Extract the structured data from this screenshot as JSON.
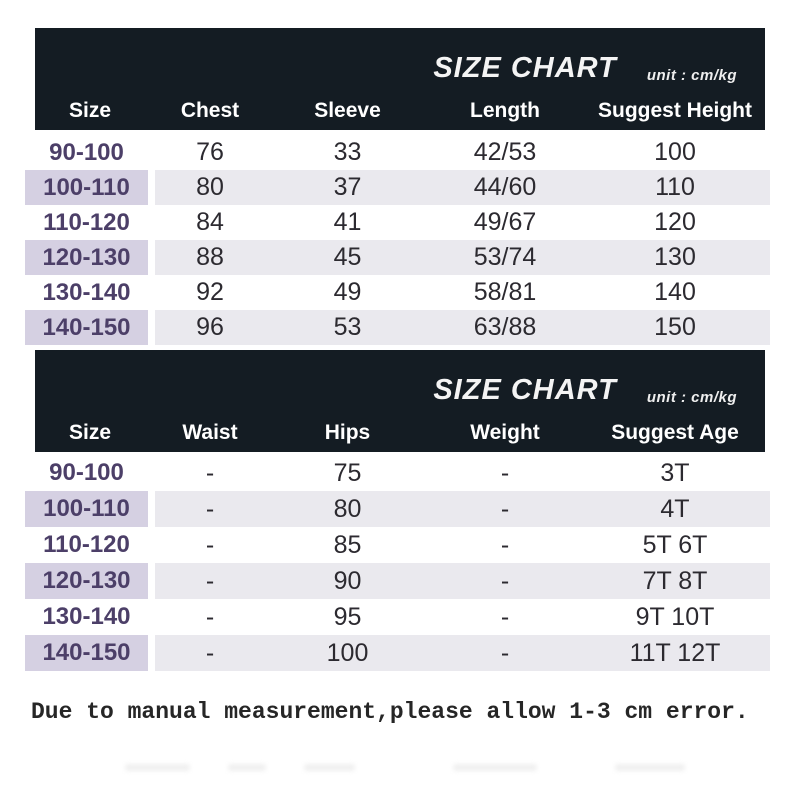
{
  "note": "Due to manual measurement,please allow 1-3 cm error.",
  "colors": {
    "header_bg": "#141c23",
    "header_text": "#ffffff",
    "size_text": "#4c3f68",
    "value_text": "#2c2a30",
    "size_cell_bg": "#d5d0e2",
    "stripe_bg": "#eae9ee"
  },
  "chart_data": [
    {
      "type": "table",
      "title": "SIZE CHART",
      "unit": "unit : cm/kg",
      "columns": [
        "Size",
        "Chest",
        "Sleeve",
        "Length",
        "Suggest Height"
      ],
      "rows": [
        [
          "90-100",
          "76",
          "33",
          "42/53",
          "100"
        ],
        [
          "100-110",
          "80",
          "37",
          "44/60",
          "110"
        ],
        [
          "110-120",
          "84",
          "41",
          "49/67",
          "120"
        ],
        [
          "120-130",
          "88",
          "45",
          "53/74",
          "130"
        ],
        [
          "130-140",
          "92",
          "49",
          "58/81",
          "140"
        ],
        [
          "140-150",
          "96",
          "53",
          "63/88",
          "150"
        ]
      ]
    },
    {
      "type": "table",
      "title": "SIZE CHART",
      "unit": "unit : cm/kg",
      "columns": [
        "Size",
        "Waist",
        "Hips",
        "Weight",
        "Suggest Age"
      ],
      "rows": [
        [
          "90-100",
          "-",
          "75",
          "-",
          "3T"
        ],
        [
          "100-110",
          "-",
          "80",
          "-",
          "4T"
        ],
        [
          "110-120",
          "-",
          "85",
          "-",
          "5T 6T"
        ],
        [
          "120-130",
          "-",
          "90",
          "-",
          "7T 8T"
        ],
        [
          "130-140",
          "-",
          "95",
          "-",
          "9T 10T"
        ],
        [
          "140-150",
          "-",
          "100",
          "-",
          "11T 12T"
        ]
      ]
    }
  ]
}
